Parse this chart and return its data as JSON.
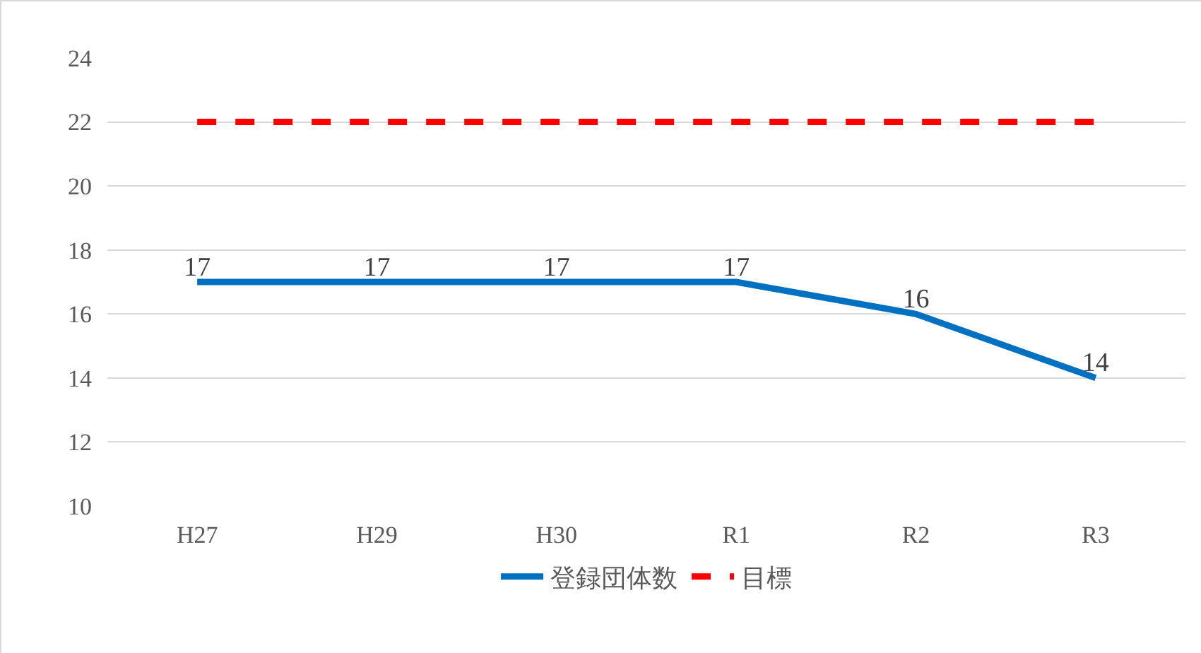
{
  "chart_data": {
    "type": "line",
    "categories": [
      "H27",
      "H29",
      "H30",
      "R1",
      "R2",
      "R3"
    ],
    "series": [
      {
        "name": "登録団体数",
        "color": "#0070c0",
        "values": [
          17,
          17,
          17,
          17,
          16,
          14
        ],
        "value_labels": [
          "17",
          "17",
          "17",
          "17",
          "16",
          "14"
        ],
        "line_style": "solid"
      },
      {
        "name": "目標",
        "color": "#ff0000",
        "values": [
          22,
          22,
          22,
          22,
          22,
          22
        ],
        "line_style": "dashed"
      }
    ],
    "ylim": [
      10,
      24
    ],
    "yticks": [
      10,
      12,
      14,
      16,
      18,
      20,
      22,
      24
    ],
    "grid": "y",
    "legend": "bottom",
    "marker": "none"
  }
}
